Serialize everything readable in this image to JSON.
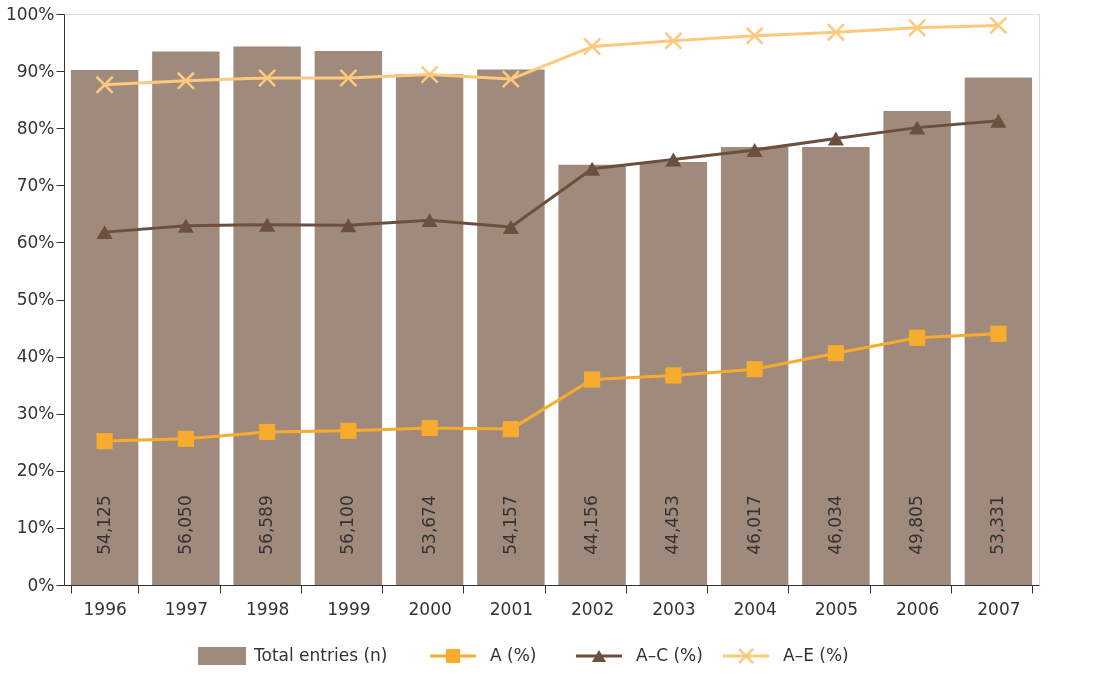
{
  "chart_data": {
    "type": "line",
    "categories": [
      "1996",
      "1997",
      "1998",
      "1999",
      "2000",
      "2001",
      "2002",
      "2003",
      "2004",
      "2005",
      "2006",
      "2007"
    ],
    "ylim": [
      0,
      100
    ],
    "yticks": [
      {
        "value": 0,
        "label": "0%"
      },
      {
        "value": 10,
        "label": "10%"
      },
      {
        "value": 20,
        "label": "20%"
      },
      {
        "value": 30,
        "label": "30%"
      },
      {
        "value": 40,
        "label": "40%"
      },
      {
        "value": 50,
        "label": "50%"
      },
      {
        "value": 60,
        "label": "60%"
      },
      {
        "value": 70,
        "label": "70%"
      },
      {
        "value": 80,
        "label": "80%"
      },
      {
        "value": 90,
        "label": "90%"
      },
      {
        "value": 100,
        "label": "100%"
      }
    ],
    "y2lim": [
      0,
      60000
    ],
    "tick_labels": "xy",
    "legend": "bottom",
    "series": [
      {
        "name": "Total entries (n)",
        "type": "bar",
        "axis": "y2",
        "color": "#a08a7c",
        "values": [
          54125,
          56050,
          56589,
          56100,
          53674,
          54157,
          44156,
          44453,
          46017,
          46034,
          49805,
          53331
        ],
        "value_labels": [
          "54,125",
          "56,050",
          "56,589",
          "56,100",
          "53,674",
          "54,157",
          "44,156",
          "44,453",
          "46,017",
          "46,034",
          "49,805",
          "53,331"
        ]
      },
      {
        "name": "A (%)",
        "marker": "square",
        "color": "#f8ac2e",
        "values": [
          25.2,
          25.6,
          26.8,
          27.0,
          27.5,
          27.3,
          36.0,
          36.7,
          37.8,
          40.6,
          43.3,
          44.0
        ]
      },
      {
        "name": "A–C (%)",
        "marker": "triangle",
        "color": "#6b5040",
        "values": [
          61.8,
          62.9,
          63.1,
          63.0,
          63.9,
          62.7,
          72.9,
          74.5,
          76.2,
          78.2,
          80.1,
          81.3
        ]
      },
      {
        "name": "A–E (%)",
        "marker": "cross",
        "color": "#fec97d",
        "values": [
          87.6,
          88.3,
          88.8,
          88.8,
          89.4,
          88.6,
          94.3,
          95.3,
          96.2,
          96.8,
          97.6,
          98.0
        ]
      }
    ]
  }
}
